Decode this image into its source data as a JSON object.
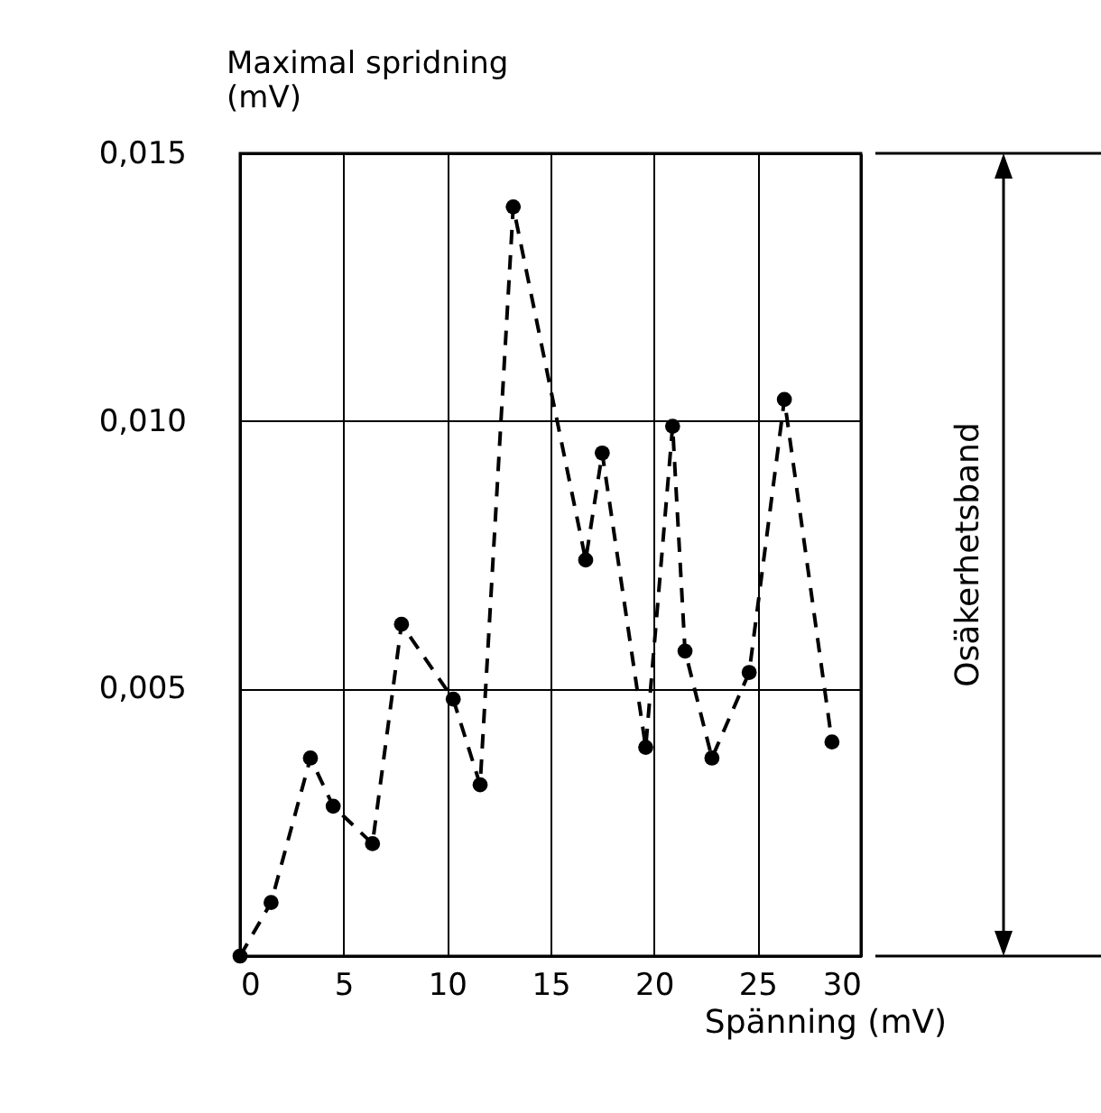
{
  "chart_data": {
    "type": "line",
    "xlabel": "Spänning (mV)",
    "ylabel": "Maximal spridning (mV)",
    "annotations": [
      "Osäkerhetsband"
    ],
    "x": [
      0,
      1.5,
      3.4,
      4.5,
      6.4,
      7.8,
      10.3,
      11.6,
      13.2,
      16.7,
      17.5,
      19.6,
      20.9,
      21.5,
      22.8,
      24.6,
      26.3,
      28.6
    ],
    "series": [
      {
        "color": "#000000",
        "values": [
          0,
          0.001,
          0.0037,
          0.0028,
          0.0021,
          0.0062,
          0.0048,
          0.0032,
          0.014,
          0.0074,
          0.0094,
          0.0039,
          0.0099,
          0.0057,
          0.0037,
          0.0053,
          0.0104,
          0.004
        ]
      }
    ],
    "xlim": [
      0,
      30
    ],
    "xticks": [
      0,
      5,
      10,
      15,
      20,
      25,
      30
    ],
    "ylim": [
      0,
      0.015
    ],
    "yticks": [
      {
        "value": 0,
        "label": null
      },
      {
        "value": 0.005,
        "label": "0,005"
      },
      {
        "value": 0.01,
        "label": "0,010"
      },
      {
        "value": 0.015,
        "label": "0,015"
      }
    ],
    "grid": true,
    "marker": "circle",
    "line_style": "dashed"
  }
}
